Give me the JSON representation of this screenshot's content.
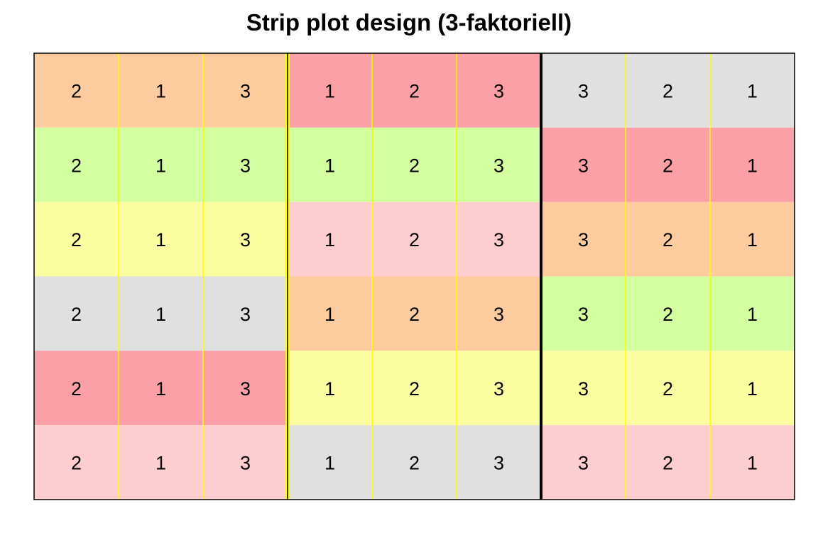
{
  "title": "Strip plot design (3-faktoriell)",
  "design": {
    "blocks": 3,
    "rows": 6,
    "strips_per_block": 3,
    "strip_line_color": "#ffff00",
    "labels": [
      [
        "2",
        "1",
        "3"
      ],
      [
        "1",
        "2",
        "3"
      ],
      [
        "3",
        "2",
        "1"
      ]
    ],
    "row_colors": [
      [
        "#fdcc9e",
        "#fba0a6",
        "#e0e0e0"
      ],
      [
        "#d4ffa1",
        "#d4ffa1",
        "#fba0a6"
      ],
      [
        "#fcfda0",
        "#fdcdd0",
        "#fdcc9e"
      ],
      [
        "#e0e0e0",
        "#fdcc9e",
        "#d4ffa1"
      ],
      [
        "#fba0a6",
        "#fcfda0",
        "#fcfda0"
      ],
      [
        "#fdcdd0",
        "#e0e0e0",
        "#fdcdd0"
      ]
    ]
  }
}
